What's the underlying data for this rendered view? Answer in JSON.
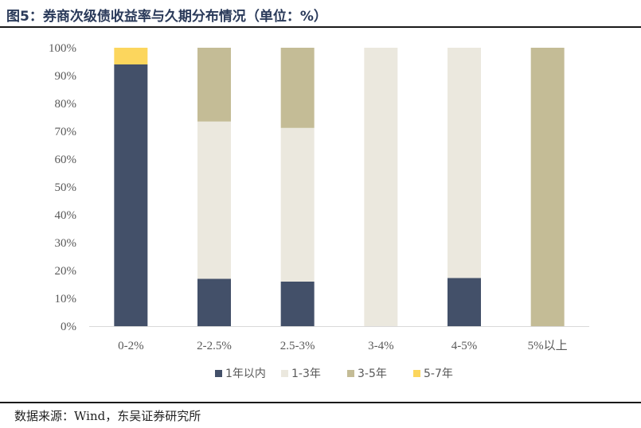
{
  "title": "图5：券商次级债收益率与久期分布情况（单位：%）",
  "source": "数据来源：Wind，东吴证券研究所",
  "colors": {
    "1年以内": "#435069",
    "1-3年": "#ebe8de",
    "3-5年": "#c4bc96",
    "5-7年": "#fcd65d"
  },
  "chart_data": {
    "type": "bar",
    "stacked": true,
    "categories": [
      "0-2%",
      "2-2.5%",
      "2.5-3%",
      "3-4%",
      "4-5%",
      "5%以上"
    ],
    "series": [
      {
        "name": "1年以内",
        "values": [
          94,
          17,
          16,
          0,
          17.3,
          0
        ]
      },
      {
        "name": "1-3年",
        "values": [
          0,
          56.5,
          55.2,
          100,
          82.7,
          0
        ]
      },
      {
        "name": "3-5年",
        "values": [
          0,
          26.5,
          28.8,
          0,
          0,
          100
        ]
      },
      {
        "name": "5-7年",
        "values": [
          6,
          0,
          0,
          0,
          0,
          0
        ]
      }
    ],
    "yticks": [
      "0%",
      "10%",
      "20%",
      "30%",
      "40%",
      "50%",
      "60%",
      "70%",
      "80%",
      "90%",
      "100%"
    ],
    "ylim": [
      0,
      100
    ],
    "legend_position": "bottom",
    "grid": false
  }
}
